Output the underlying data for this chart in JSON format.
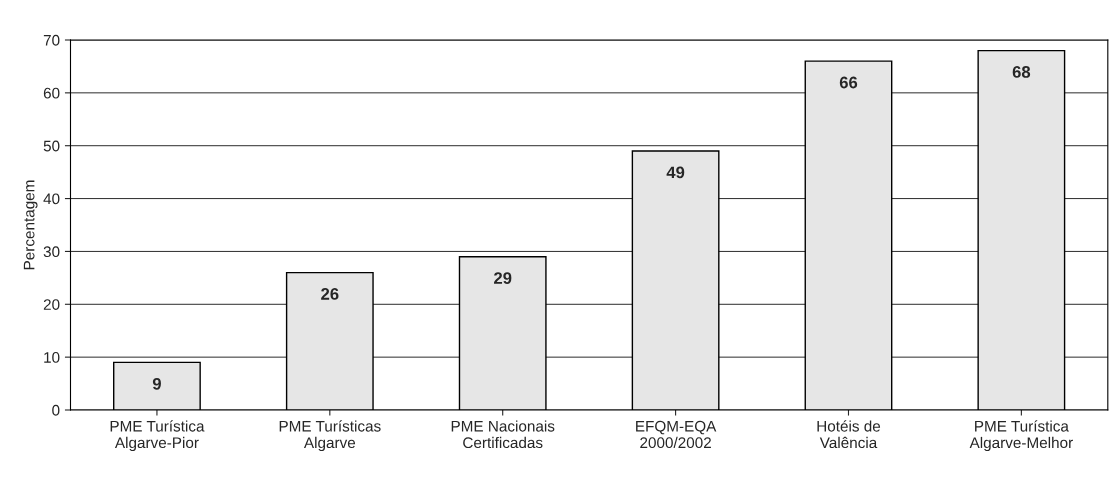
{
  "chart_data": {
    "type": "bar",
    "ylabel": "Percentagem",
    "categories": [
      "PME Turística\nAlgarve-Pior",
      "PME Turísticas\nAlgarve",
      "PME Nacionais\nCertificadas",
      "EFQM-EQA\n2000/2002",
      "Hotéis de\nValência",
      "PME Turística\nAlgarve-Melhor"
    ],
    "values": [
      9,
      26,
      29,
      49,
      66,
      68
    ],
    "color": "#e6e6e6",
    "ylim": [
      0,
      70
    ],
    "yticks": [
      0,
      10,
      20,
      30,
      40,
      50,
      60,
      70
    ],
    "grid": "y",
    "data_labels": true
  }
}
